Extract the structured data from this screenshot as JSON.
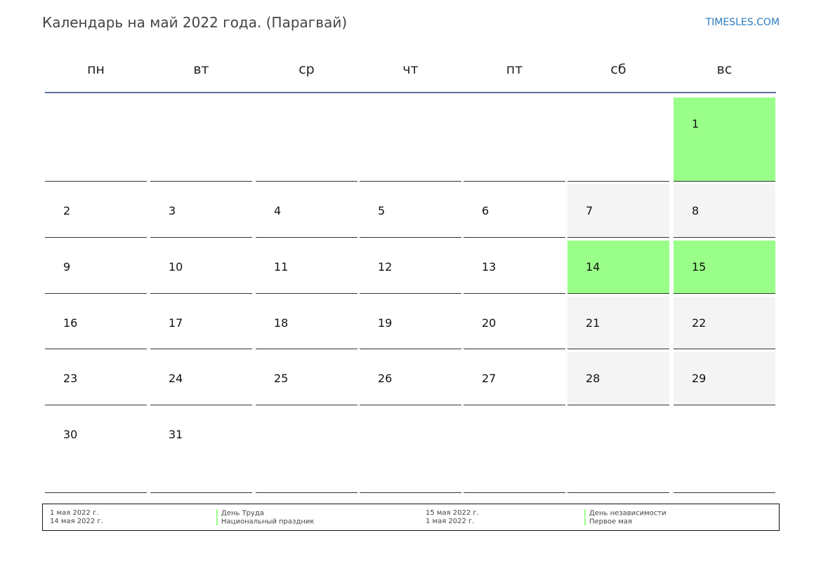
{
  "header": {
    "title": "Календарь на май 2022 года. (Парагвай)",
    "brand": "TIMESLES.COM"
  },
  "weekdays": [
    "пн",
    "вт",
    "ср",
    "чт",
    "пт",
    "сб",
    "вс"
  ],
  "colors": {
    "holiday": "#99ff88",
    "weekend": "#f4f4f4",
    "header_line": "#5b7399"
  },
  "weeks": [
    [
      null,
      null,
      null,
      null,
      null,
      null,
      {
        "day": "1",
        "type": "holiday"
      }
    ],
    [
      {
        "day": "2"
      },
      {
        "day": "3"
      },
      {
        "day": "4"
      },
      {
        "day": "5"
      },
      {
        "day": "6"
      },
      {
        "day": "7",
        "type": "weekend"
      },
      {
        "day": "8",
        "type": "weekend"
      }
    ],
    [
      {
        "day": "9"
      },
      {
        "day": "10"
      },
      {
        "day": "11"
      },
      {
        "day": "12"
      },
      {
        "day": "13"
      },
      {
        "day": "14",
        "type": "holiday"
      },
      {
        "day": "15",
        "type": "holiday"
      }
    ],
    [
      {
        "day": "16"
      },
      {
        "day": "17"
      },
      {
        "day": "18"
      },
      {
        "day": "19"
      },
      {
        "day": "20"
      },
      {
        "day": "21",
        "type": "weekend"
      },
      {
        "day": "22",
        "type": "weekend"
      }
    ],
    [
      {
        "day": "23"
      },
      {
        "day": "24"
      },
      {
        "day": "25"
      },
      {
        "day": "26"
      },
      {
        "day": "27"
      },
      {
        "day": "28",
        "type": "weekend"
      },
      {
        "day": "29",
        "type": "weekend"
      }
    ],
    [
      {
        "day": "30"
      },
      {
        "day": "31"
      },
      null,
      null,
      null,
      null,
      null
    ]
  ],
  "holidays": [
    {
      "date": "1 мая 2022 г.",
      "name": "День Труда"
    },
    {
      "date": "14 мая 2022 г.",
      "name": "Национальный праздник"
    },
    {
      "date": "15 мая 2022 г.",
      "name": "День независимости"
    },
    {
      "date": "1 мая 2022 г.",
      "name": "Первое мая"
    }
  ]
}
